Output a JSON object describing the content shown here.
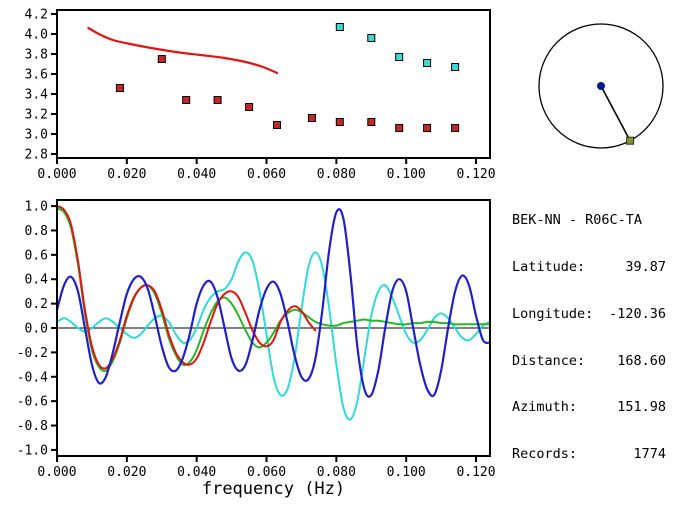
{
  "station_info": {
    "title": "BEK-NN - R06C-TA",
    "rows": [
      {
        "label": "Latitude:",
        "value": "39.87"
      },
      {
        "label": "Longitude:",
        "value": "-120.36"
      },
      {
        "label": "Distance:",
        "value": "168.60"
      },
      {
        "label": "Azimuth:",
        "value": "151.98"
      },
      {
        "label": "Records:",
        "value": "1774"
      }
    ]
  },
  "azimuth_diagram": {
    "azimuth_deg": 151.98,
    "circle_color": "#000000",
    "line_color": "#000000",
    "center_dot_color": "#001a8c",
    "endpoint_fill": "#87932f",
    "endpoint_stroke": "#23321c"
  },
  "chart_data": [
    {
      "name": "dispersion",
      "type": "scatter",
      "title": "",
      "xlabel": "",
      "ylabel": "",
      "xlim": [
        0,
        0.124
      ],
      "ylim": [
        2.76,
        4.24
      ],
      "xticks": [
        "0.000",
        "0.020",
        "0.040",
        "0.060",
        "0.080",
        "0.100",
        "0.120"
      ],
      "yticks": [
        "2.8",
        "3.0",
        "3.2",
        "3.4",
        "3.6",
        "3.8",
        "4.0",
        "4.2"
      ],
      "grid": false,
      "legend": "none",
      "series": [
        {
          "name": "reference-dispersion-curve",
          "kind": "line",
          "color": "#e01414",
          "width": 2.2,
          "x": [
            0.009,
            0.012,
            0.016,
            0.021,
            0.027,
            0.034,
            0.041,
            0.048,
            0.054,
            0.059,
            0.063
          ],
          "y": [
            4.06,
            4.0,
            3.94,
            3.9,
            3.86,
            3.82,
            3.79,
            3.76,
            3.72,
            3.67,
            3.61
          ]
        },
        {
          "name": "measured-points-red",
          "kind": "scatter",
          "color": "#c22828",
          "x": [
            0.018,
            0.03,
            0.037,
            0.046,
            0.055,
            0.063,
            0.073,
            0.081,
            0.09,
            0.098,
            0.106,
            0.114
          ],
          "y": [
            3.46,
            3.75,
            3.34,
            3.34,
            3.27,
            3.09,
            3.16,
            3.12,
            3.12,
            3.06,
            3.06,
            3.06
          ]
        },
        {
          "name": "measured-points-cyan",
          "kind": "scatter",
          "color": "#3fd9d9",
          "x": [
            0.081,
            0.09,
            0.098,
            0.106,
            0.114
          ],
          "y": [
            4.07,
            3.96,
            3.77,
            3.71,
            3.67
          ]
        }
      ]
    },
    {
      "name": "waveforms",
      "type": "line",
      "title": "",
      "xlabel": "frequency (Hz)",
      "ylabel": "",
      "xlim": [
        0,
        0.124
      ],
      "ylim": [
        -1.05,
        1.05
      ],
      "xticks": [
        "0.000",
        "0.020",
        "0.040",
        "0.060",
        "0.080",
        "0.100",
        "0.120"
      ],
      "yticks": [
        "1.0",
        "0.8",
        "0.6",
        "0.4",
        "0.2",
        "0.0",
        "-0.2",
        "-0.4",
        "-0.6",
        "-0.8",
        "-1.0"
      ],
      "zero_line": true,
      "grid": false,
      "legend": "none",
      "series": [
        {
          "name": "cyan-trace",
          "kind": "line",
          "color": "#2fd9d9",
          "width": 2,
          "x_start": 0,
          "x_step": 0.002,
          "y": [
            0.05,
            0.08,
            0.05,
            0.0,
            -0.03,
            0.0,
            0.05,
            0.08,
            0.05,
            0.0,
            -0.05,
            -0.08,
            -0.05,
            0.02,
            0.08,
            0.1,
            0.05,
            -0.05,
            -0.12,
            -0.1,
            0.0,
            0.15,
            0.25,
            0.3,
            0.32,
            0.4,
            0.55,
            0.62,
            0.55,
            0.3,
            -0.05,
            -0.4,
            -0.55,
            -0.5,
            -0.25,
            0.15,
            0.5,
            0.62,
            0.5,
            0.15,
            -0.3,
            -0.65,
            -0.75,
            -0.6,
            -0.25,
            0.1,
            0.3,
            0.35,
            0.25,
            0.1,
            -0.05,
            -0.12,
            -0.1,
            -0.02,
            0.08,
            0.12,
            0.08,
            0.0,
            -0.08,
            -0.1,
            -0.05,
            0.02,
            0.05
          ]
        },
        {
          "name": "green-trace",
          "kind": "line",
          "color": "#26b826",
          "width": 2,
          "x_start": 0,
          "x_step": 0.002,
          "y": [
            0.98,
            0.95,
            0.82,
            0.52,
            0.12,
            -0.18,
            -0.32,
            -0.35,
            -0.27,
            -0.12,
            0.08,
            0.24,
            0.33,
            0.35,
            0.28,
            0.12,
            -0.08,
            -0.22,
            -0.3,
            -0.28,
            -0.18,
            -0.02,
            0.12,
            0.22,
            0.25,
            0.2,
            0.1,
            -0.02,
            -0.12,
            -0.16,
            -0.12,
            -0.04,
            0.06,
            0.12,
            0.15,
            0.13,
            0.09,
            0.05,
            0.03,
            0.02,
            0.02,
            0.04,
            0.05,
            0.06,
            0.07,
            0.06,
            0.06,
            0.05,
            0.04,
            0.03,
            0.03,
            0.04,
            0.04,
            0.05,
            0.05,
            0.04,
            0.04,
            0.03,
            0.03,
            0.03,
            0.03,
            0.03,
            0.03
          ]
        },
        {
          "name": "red-trace",
          "kind": "line",
          "color": "#e01414",
          "width": 2,
          "x_start": 0,
          "x_step": 0.002,
          "y": [
            1.0,
            0.97,
            0.85,
            0.55,
            0.15,
            -0.15,
            -0.3,
            -0.33,
            -0.25,
            -0.1,
            0.1,
            0.25,
            0.33,
            0.35,
            0.3,
            0.15,
            -0.05,
            -0.2,
            -0.28,
            -0.3,
            -0.25,
            -0.12,
            0.05,
            0.2,
            0.28,
            0.3,
            0.25,
            0.12,
            -0.02,
            -0.12,
            -0.15,
            -0.1,
            0.05,
            0.14,
            0.18,
            0.14,
            0.05,
            -0.02
          ]
        },
        {
          "name": "blue-trace",
          "kind": "line",
          "color": "#2020c8",
          "width": 2.2,
          "x_start": 0,
          "x_step": 0.002,
          "y": [
            0.15,
            0.35,
            0.42,
            0.3,
            0.0,
            -0.3,
            -0.45,
            -0.4,
            -0.2,
            0.05,
            0.28,
            0.4,
            0.42,
            0.32,
            0.1,
            -0.15,
            -0.32,
            -0.35,
            -0.25,
            -0.05,
            0.2,
            0.35,
            0.38,
            0.25,
            0.0,
            -0.25,
            -0.35,
            -0.3,
            -0.1,
            0.15,
            0.32,
            0.38,
            0.28,
            0.05,
            -0.22,
            -0.4,
            -0.42,
            -0.25,
            0.15,
            0.65,
            0.95,
            0.9,
            0.45,
            -0.15,
            -0.5,
            -0.55,
            -0.35,
            0.0,
            0.3,
            0.4,
            0.3,
            0.0,
            -0.3,
            -0.5,
            -0.55,
            -0.35,
            0.0,
            0.3,
            0.43,
            0.35,
            0.1,
            -0.1,
            -0.12
          ]
        }
      ]
    }
  ]
}
